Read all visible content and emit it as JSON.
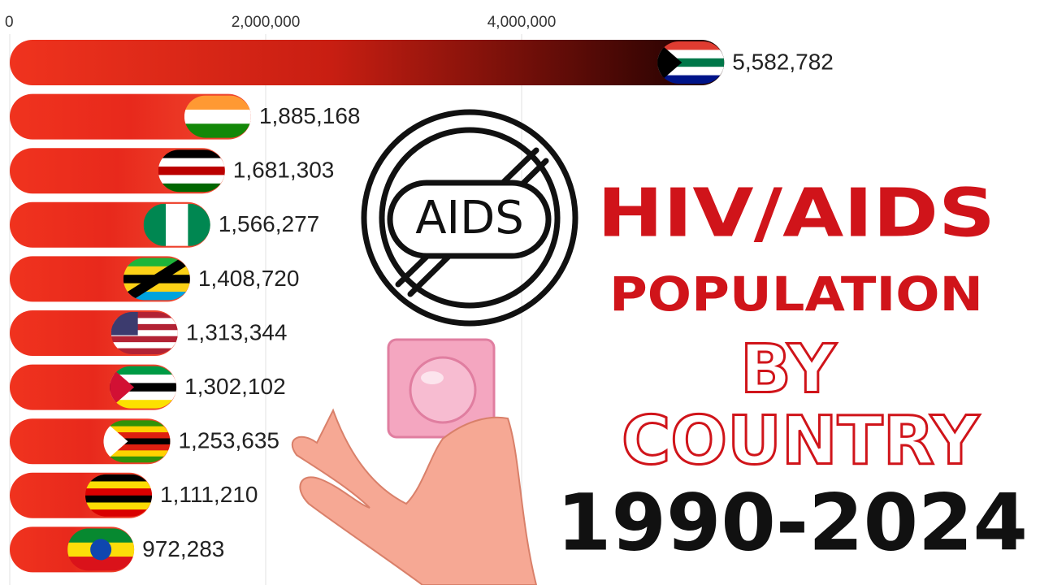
{
  "chart_data": {
    "type": "bar",
    "orientation": "horizontal",
    "values": [
      5582782,
      1885168,
      1681303,
      1566277,
      1408720,
      1313344,
      1302102,
      1253635,
      1111210,
      972283
    ],
    "value_labels": [
      "5,582,782",
      "1,885,168",
      "1,681,303",
      "1,566,277",
      "1,408,720",
      "1,313,344",
      "1,302,102",
      "1,253,635",
      "1,111,210",
      "972,283"
    ],
    "xlim": [
      0,
      8000000
    ],
    "xticks": [
      0,
      {
        "value": 2000000,
        "label": "2,000,000"
      },
      {
        "value": 4000000,
        "label": "4,000,000"
      }
    ],
    "grid": true,
    "color": "#e8291c",
    "leader_color": "#1a0000",
    "title_lines": [
      "HIV/AIDS",
      "POPULATION",
      "BY",
      "COUNTRY",
      "1990-2024"
    ],
    "icon_text": "AIDS"
  }
}
